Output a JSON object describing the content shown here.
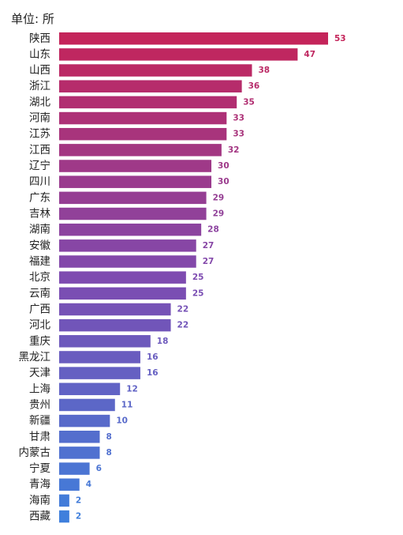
{
  "chart_data": {
    "type": "bar",
    "orientation": "horizontal",
    "unit_label": "单位: 所",
    "categories": [
      "陕西",
      "山东",
      "山西",
      "浙江",
      "湖北",
      "河南",
      "江苏",
      "江西",
      "辽宁",
      "四川",
      "广东",
      "吉林",
      "湖南",
      "安徽",
      "福建",
      "北京",
      "云南",
      "广西",
      "河北",
      "重庆",
      "黑龙江",
      "天津",
      "上海",
      "贵州",
      "新疆",
      "甘肃",
      "内蒙古",
      "宁夏",
      "青海",
      "海南",
      "西藏"
    ],
    "values": [
      53,
      47,
      38,
      36,
      35,
      33,
      33,
      32,
      30,
      30,
      29,
      29,
      28,
      27,
      27,
      25,
      25,
      22,
      22,
      18,
      16,
      16,
      12,
      11,
      10,
      8,
      8,
      6,
      4,
      2,
      2
    ],
    "xlim": [
      0,
      53
    ],
    "grid": false,
    "legend": "none",
    "colors": {
      "top": "#c4245a",
      "middle": "#7e4bb0",
      "bottom": "#3f7fdc"
    }
  }
}
